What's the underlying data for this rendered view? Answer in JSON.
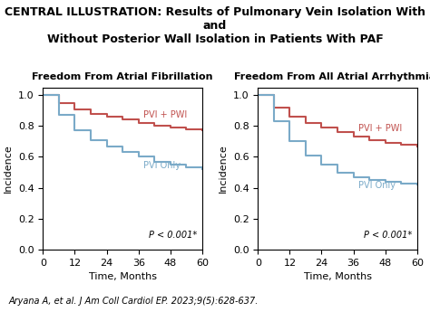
{
  "title": "CENTRAL ILLUSTRATION: Results of Pulmonary Vein Isolation With and\nWithout Posterior Wall Isolation in Patients With PAF",
  "caption": "Aryana A, et al. J Am Coll Cardiol EP. 2023;9(5):628-637.",
  "chart_data": [
    {
      "type": "step",
      "title": "Freedom From Atrial Fibrillation",
      "xlabel": "Time, Months",
      "ylabel": "Incidence",
      "x": [
        0,
        6,
        12,
        18,
        24,
        30,
        36,
        42,
        48,
        54,
        60
      ],
      "series": [
        {
          "name": "PVI + PWI",
          "color": "#c0504d",
          "values": [
            1.0,
            0.95,
            0.91,
            0.88,
            0.86,
            0.84,
            0.82,
            0.8,
            0.79,
            0.78,
            0.77
          ]
        },
        {
          "name": "PVI Only",
          "color": "#7aaac8",
          "values": [
            1.0,
            0.87,
            0.77,
            0.71,
            0.67,
            0.63,
            0.6,
            0.57,
            0.55,
            0.53,
            0.52
          ]
        }
      ],
      "xlim": [
        0,
        60
      ],
      "ylim": [
        0.0,
        1.05
      ],
      "xticks": [
        0,
        12,
        24,
        36,
        48,
        60
      ],
      "yticks": [
        0.0,
        0.2,
        0.4,
        0.6,
        0.8,
        1.0
      ],
      "annotations": [
        "P < 0.001*"
      ],
      "grid": false
    },
    {
      "type": "step",
      "title": "Freedom From All Atrial Arrhythmias",
      "xlabel": "Time, Months",
      "ylabel": "Incidence",
      "x": [
        0,
        6,
        12,
        18,
        24,
        30,
        36,
        42,
        48,
        54,
        60
      ],
      "series": [
        {
          "name": "PVI + PWI",
          "color": "#c0504d",
          "values": [
            1.0,
            0.92,
            0.86,
            0.82,
            0.79,
            0.76,
            0.73,
            0.71,
            0.69,
            0.68,
            0.67
          ]
        },
        {
          "name": "PVI Only",
          "color": "#7aaac8",
          "values": [
            1.0,
            0.83,
            0.7,
            0.61,
            0.55,
            0.5,
            0.47,
            0.45,
            0.44,
            0.43,
            0.42
          ]
        }
      ],
      "xlim": [
        0,
        60
      ],
      "ylim": [
        0.0,
        1.05
      ],
      "xticks": [
        0,
        12,
        24,
        36,
        48,
        60
      ],
      "yticks": [
        0.0,
        0.2,
        0.4,
        0.6,
        0.8,
        1.0
      ],
      "annotations": [
        "P < 0.001*"
      ],
      "grid": false
    }
  ]
}
